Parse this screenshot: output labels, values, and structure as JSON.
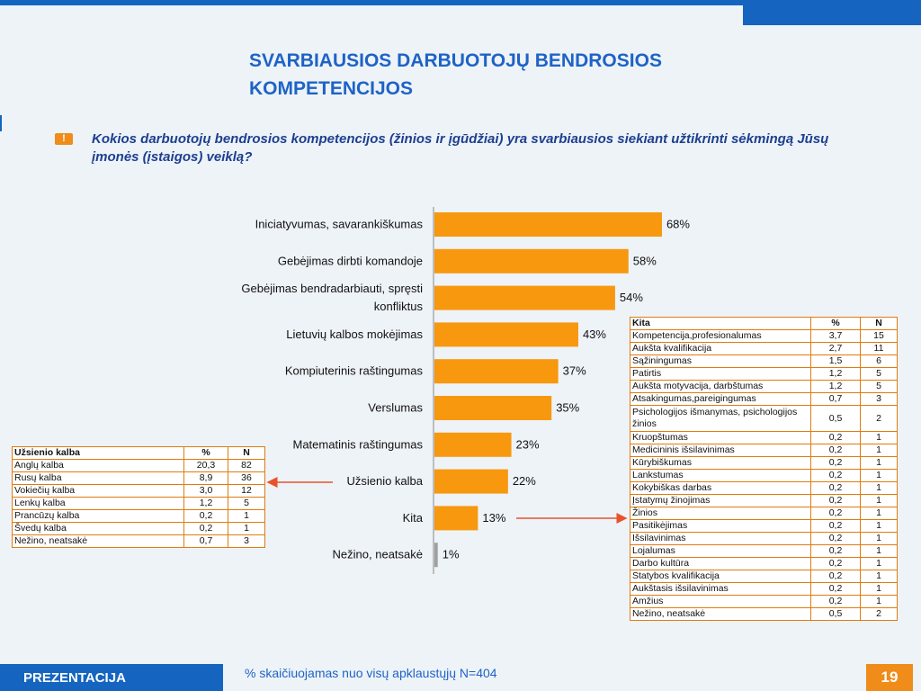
{
  "title": "SVARBIAUSIOS DARBUOTOJŲ BENDROSIOS KOMPETENCIJOS",
  "bullet_icon": "!",
  "question": "Kokios darbuotojų bendrosios kompetencijos (žinios ir įgūdžiai) yra svarbiausios siekiant užtikrinti sėkmingą Jūsų įmonės (įstaigos) veiklą?",
  "colors": {
    "bar": "#f7980f",
    "bar_neutral": "#a0a0a0",
    "accent_blue": "#1565c0",
    "arrow": "#e8532a"
  },
  "chart_data": {
    "type": "bar",
    "orientation": "horizontal",
    "categories": [
      "Iniciatyvumas, savarankiškumas",
      "Gebėjimas dirbti komandoje",
      "Gebėjimas bendradarbiauti, spręsti konfliktus",
      "Lietuvių kalbos mokėjimas",
      "Kompiuterinis raštingumas",
      "Verslumas",
      "Matematinis raštingumas",
      "Užsienio kalba",
      "Kita",
      "Nežino, neatsakė"
    ],
    "category_lines": [
      [
        "Iniciatyvumas, savarankiškumas"
      ],
      [
        "Gebėjimas dirbti komandoje"
      ],
      [
        "Gebėjimas bendradarbiauti, spręsti",
        "konfliktus"
      ],
      [
        "Lietuvių kalbos mokėjimas"
      ],
      [
        "Kompiuterinis raštingumas"
      ],
      [
        "Verslumas"
      ],
      [
        "Matematinis raštingumas"
      ],
      [
        "Užsienio kalba"
      ],
      [
        "Kita"
      ],
      [
        "Nežino, neatsakė"
      ]
    ],
    "values": [
      68,
      58,
      54,
      43,
      37,
      35,
      23,
      22,
      13,
      1
    ],
    "value_labels": [
      "68%",
      "58%",
      "54%",
      "43%",
      "37%",
      "35%",
      "23%",
      "22%",
      "13%",
      "1%"
    ],
    "xlim": [
      0,
      100
    ],
    "grid": false,
    "legend": "none"
  },
  "language_table": {
    "headers": [
      "Užsienio kalba",
      "%",
      "N"
    ],
    "rows": [
      [
        "Anglų kalba",
        "20,3",
        "82"
      ],
      [
        "Rusų kalba",
        "8,9",
        "36"
      ],
      [
        "Vokiečių kalba",
        "3,0",
        "12"
      ],
      [
        "Lenkų kalba",
        "1,2",
        "5"
      ],
      [
        "Prancūzų kalba",
        "0,2",
        "1"
      ],
      [
        "Švedų kalba",
        "0,2",
        "1"
      ],
      [
        "Nežino, neatsakė",
        "0,7",
        "3"
      ]
    ]
  },
  "other_table": {
    "headers": [
      "Kita",
      "%",
      "N"
    ],
    "rows": [
      [
        "Kompetencija,profesionalumas",
        "3,7",
        "15"
      ],
      [
        "Aukšta kvalifikacija",
        "2,7",
        "11"
      ],
      [
        "Sąžiningumas",
        "1,5",
        "6"
      ],
      [
        "Patirtis",
        "1,2",
        "5"
      ],
      [
        "Aukšta motyvacija, darbštumas",
        "1,2",
        "5"
      ],
      [
        "Atsakingumas,pareigingumas",
        "0,7",
        "3"
      ],
      [
        "Psichologijos išmanymas, psichologijos žinios",
        "0,5",
        "2"
      ],
      [
        "Kruopštumas",
        "0,2",
        "1"
      ],
      [
        "Medicininis išsilavinimas",
        "0,2",
        "1"
      ],
      [
        "Kūrybiškumas",
        "0,2",
        "1"
      ],
      [
        "Lankstumas",
        "0,2",
        "1"
      ],
      [
        "Kokybiškas darbas",
        "0,2",
        "1"
      ],
      [
        "Įstatymų žinojimas",
        "0,2",
        "1"
      ],
      [
        "Žinios",
        "0,2",
        "1"
      ],
      [
        "Pasitikėjimas",
        "0,2",
        "1"
      ],
      [
        "Išsilavinimas",
        "0,2",
        "1"
      ],
      [
        "Lojalumas",
        "0,2",
        "1"
      ],
      [
        "Darbo kultūra",
        "0,2",
        "1"
      ],
      [
        "Statybos kvalifikacija",
        "0,2",
        "1"
      ],
      [
        "Aukštasis išsilavinimas",
        "0,2",
        "1"
      ],
      [
        "Amžius",
        "0,2",
        "1"
      ],
      [
        "Nežino, neatsakė",
        "0,5",
        "2"
      ]
    ]
  },
  "footer": {
    "left_label": "PREZENTACIJA",
    "note": "% skaičiuojamas nuo visų apklaustųjų N=404",
    "page_number": "19"
  }
}
